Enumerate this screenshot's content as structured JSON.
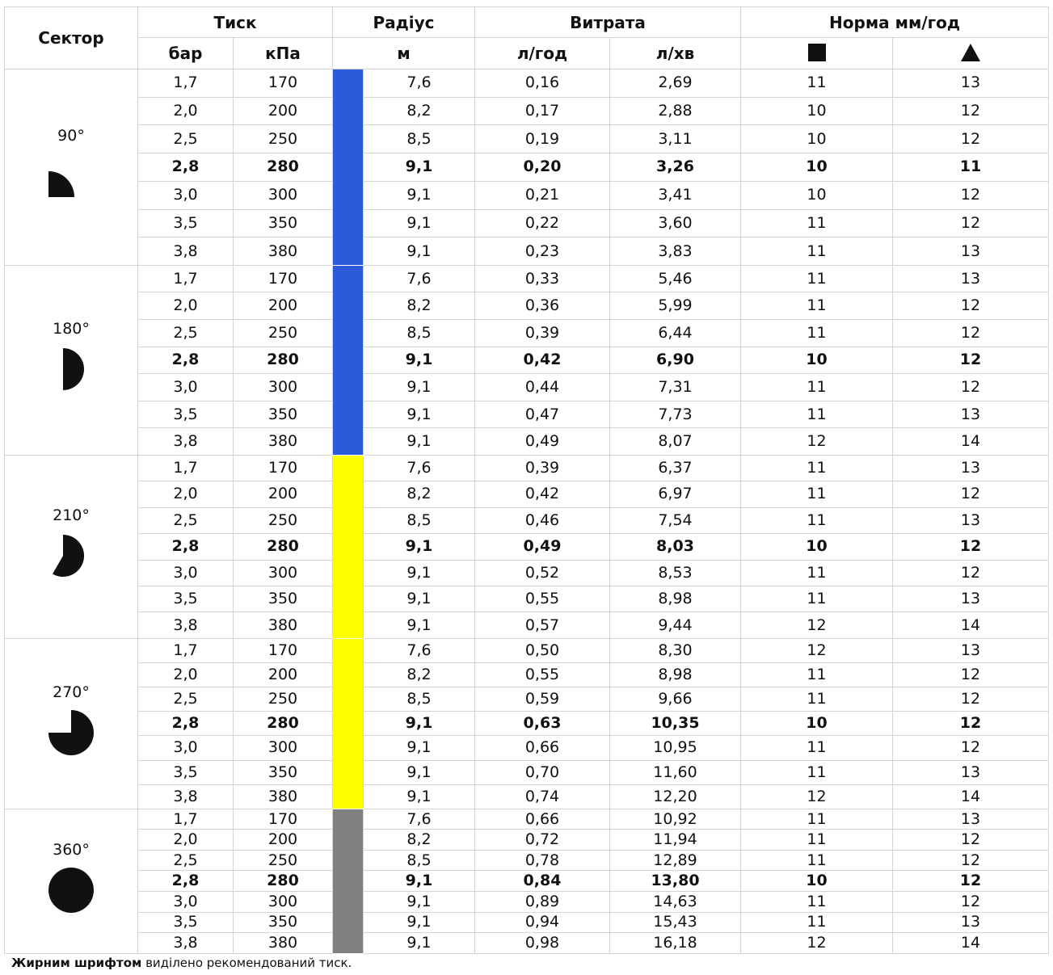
{
  "header": {
    "sector": "Сектор",
    "pressure": "Тиск",
    "radius": "Радіус",
    "flow": "Витрата",
    "rate": "Норма мм/год",
    "units": [
      "бар",
      "кПа",
      "м",
      "л/год",
      "л/хв"
    ]
  },
  "groups": [
    {
      "sector": "90°",
      "color": "#2b5bd9",
      "rows": [
        [
          "1,7",
          "170",
          "7,6",
          "0,16",
          "2,69",
          "11",
          "13"
        ],
        [
          "2,0",
          "200",
          "8,2",
          "0,17",
          "2,88",
          "10",
          "12"
        ],
        [
          "2,5",
          "250",
          "8,5",
          "0,19",
          "3,11",
          "10",
          "12"
        ],
        [
          "2,8",
          "280",
          "9,1",
          "0,20",
          "3,26",
          "10",
          "11"
        ],
        [
          "3,0",
          "300",
          "9,1",
          "0,21",
          "3,41",
          "10",
          "12"
        ],
        [
          "3,5",
          "350",
          "9,1",
          "0,22",
          "3,60",
          "11",
          "12"
        ],
        [
          "3,8",
          "380",
          "9,1",
          "0,23",
          "3,83",
          "11",
          "13"
        ]
      ]
    },
    {
      "sector": "180°",
      "color": "#2b5bd9",
      "rows": [
        [
          "1,7",
          "170",
          "7,6",
          "0,33",
          "5,46",
          "11",
          "13"
        ],
        [
          "2,0",
          "200",
          "8,2",
          "0,36",
          "5,99",
          "11",
          "12"
        ],
        [
          "2,5",
          "250",
          "8,5",
          "0,39",
          "6,44",
          "11",
          "12"
        ],
        [
          "2,8",
          "280",
          "9,1",
          "0,42",
          "6,90",
          "10",
          "12"
        ],
        [
          "3,0",
          "300",
          "9,1",
          "0,44",
          "7,31",
          "11",
          "12"
        ],
        [
          "3,5",
          "350",
          "9,1",
          "0,47",
          "7,73",
          "11",
          "13"
        ],
        [
          "3,8",
          "380",
          "9,1",
          "0,49",
          "8,07",
          "12",
          "14"
        ]
      ]
    },
    {
      "sector": "210°",
      "color": "#ffff00",
      "rows": [
        [
          "1,7",
          "170",
          "7,6",
          "0,39",
          "6,37",
          "11",
          "13"
        ],
        [
          "2,0",
          "200",
          "8,2",
          "0,42",
          "6,97",
          "11",
          "12"
        ],
        [
          "2,5",
          "250",
          "8,5",
          "0,46",
          "7,54",
          "11",
          "13"
        ],
        [
          "2,8",
          "280",
          "9,1",
          "0,49",
          "8,03",
          "10",
          "12"
        ],
        [
          "3,0",
          "300",
          "9,1",
          "0,52",
          "8,53",
          "11",
          "12"
        ],
        [
          "3,5",
          "350",
          "9,1",
          "0,55",
          "8,98",
          "11",
          "13"
        ],
        [
          "3,8",
          "380",
          "9,1",
          "0,57",
          "9,44",
          "12",
          "14"
        ]
      ]
    },
    {
      "sector": "270°",
      "color": "#ffff00",
      "rows": [
        [
          "1,7",
          "170",
          "7,6",
          "0,50",
          "8,30",
          "12",
          "13"
        ],
        [
          "2,0",
          "200",
          "8,2",
          "0,55",
          "8,98",
          "11",
          "12"
        ],
        [
          "2,5",
          "250",
          "8,5",
          "0,59",
          "9,66",
          "11",
          "12"
        ],
        [
          "2,8",
          "280",
          "9,1",
          "0,63",
          "10,35",
          "10",
          "12"
        ],
        [
          "3,0",
          "300",
          "9,1",
          "0,66",
          "10,95",
          "11",
          "12"
        ],
        [
          "3,5",
          "350",
          "9,1",
          "0,70",
          "11,60",
          "11",
          "13"
        ],
        [
          "3,8",
          "380",
          "9,1",
          "0,74",
          "12,20",
          "12",
          "14"
        ]
      ]
    },
    {
      "sector": "360°",
      "color": "#808080",
      "rows": [
        [
          "1,7",
          "170",
          "7,6",
          "0,66",
          "10,92",
          "11",
          "13"
        ],
        [
          "2,0",
          "200",
          "8,2",
          "0,72",
          "11,94",
          "11",
          "12"
        ],
        [
          "2,5",
          "250",
          "8,5",
          "0,78",
          "12,89",
          "11",
          "12"
        ],
        [
          "2,8",
          "280",
          "9,1",
          "0,84",
          "13,80",
          "10",
          "12"
        ],
        [
          "3,0",
          "300",
          "9,1",
          "0,89",
          "14,63",
          "11",
          "12"
        ],
        [
          "3,5",
          "350",
          "9,1",
          "0,94",
          "15,43",
          "11",
          "13"
        ],
        [
          "3,8",
          "380",
          "9,1",
          "0,98",
          "16,18",
          "12",
          "14"
        ]
      ]
    }
  ],
  "footnote": {
    "bold": "Жирним шрифтом",
    "text": "виділено рекомендований тиск."
  }
}
